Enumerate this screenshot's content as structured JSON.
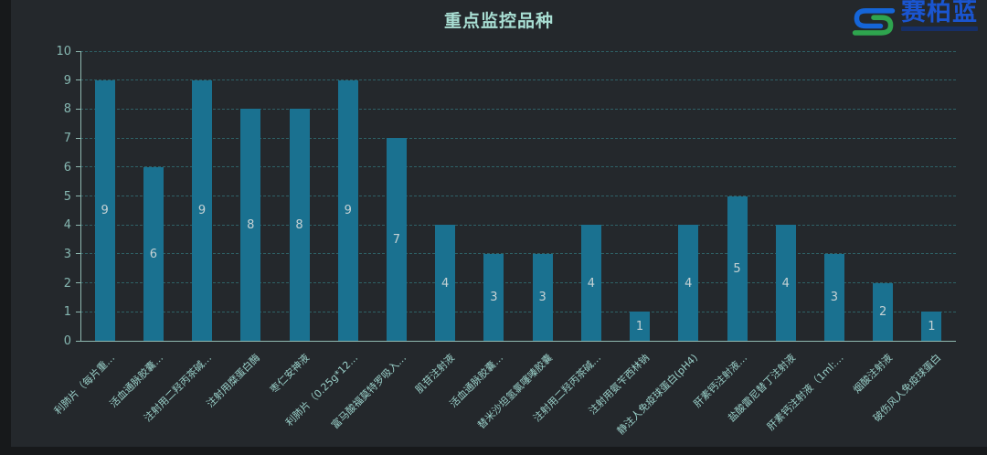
{
  "title": "重点监控品种",
  "logo": {
    "brand": "赛柏蓝",
    "icon": "saibailan-s-icon",
    "icon_blue": "#1565d8",
    "icon_green": "#2ea44e",
    "brand_color": "#1a55d0",
    "subtext_color": "#15306e"
  },
  "colors": {
    "outer_background": "#17191b",
    "panel_background": "#24282c",
    "bar": "#1a7190",
    "grid": "#2e6166",
    "axis": "#8fb8b0",
    "title_text": "#a8ded3",
    "tick_text": "#86b8b2",
    "value_text": "#c6d2d4",
    "category_text": "#9ad0c9"
  },
  "chart_data": {
    "type": "bar",
    "title": "重点监控品种",
    "categories": [
      "利肺片（每片重…",
      "活血通脉胶囊…",
      "注射用二羟丙茶碱…",
      "注射用糜蛋白酶",
      "枣仁安神液",
      "利肺片（0.25g*12…",
      "富马酸福莫特罗吸入…",
      "肌苷注射液",
      "活血通脉胶囊…",
      "替米沙坦氢氯噻嗪胶囊",
      "注射用二羟丙茶碱…",
      "注射用氨苄西林钠",
      "静注人免疫球蛋白(pH4)",
      "肝素钙注射液…",
      "盐酸雷尼替丁注射液",
      "肝素钙注射液（1ml:…",
      "烟酸注射液",
      "破伤风人免疫球蛋白"
    ],
    "values": [
      9,
      6,
      9,
      8,
      8,
      9,
      7,
      4,
      3,
      3,
      4,
      1,
      4,
      5,
      4,
      3,
      2,
      1
    ],
    "xlabel": "",
    "ylabel": "",
    "ylim": [
      0,
      10
    ],
    "yticks": [
      0,
      1,
      2,
      3,
      4,
      5,
      6,
      7,
      8,
      9,
      10
    ],
    "grid": "dashed-horizontal",
    "legend": "none",
    "value_labels": "inside-center",
    "category_label_rotation": 45
  }
}
